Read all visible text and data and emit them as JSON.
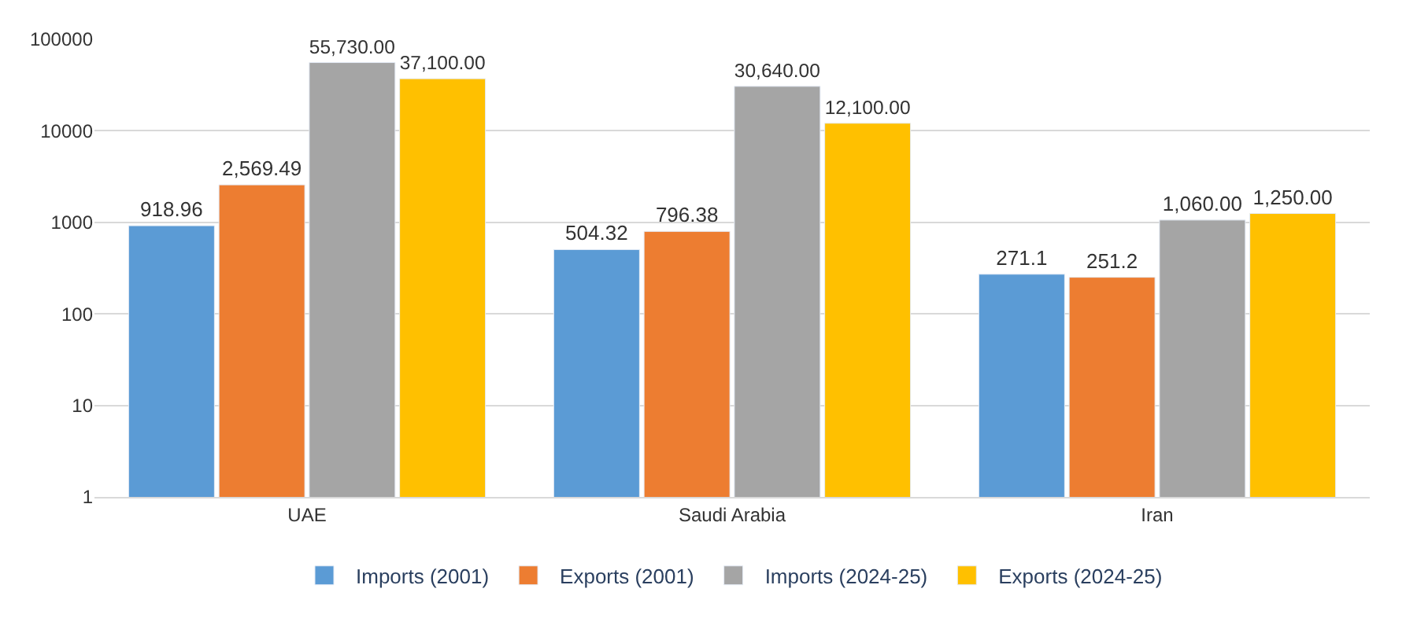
{
  "chart_data": {
    "type": "bar",
    "categories": [
      "UAE",
      "Saudi Arabia",
      "Iran"
    ],
    "series": [
      {
        "name": "Imports (2001)",
        "color": "#5b9bd5",
        "values": [
          918.96,
          504.32,
          271.1
        ],
        "value_labels": [
          "918.96",
          "504.32",
          "271.1"
        ]
      },
      {
        "name": "Exports (2001)",
        "color": "#ed7d31",
        "values": [
          2569.49,
          796.38,
          251.2
        ],
        "value_labels": [
          "2,569.49",
          "796.38",
          "251.2"
        ]
      },
      {
        "name": "Imports (2024-25)",
        "color": "#a5a5a5",
        "values": [
          55730,
          30640,
          1060
        ],
        "value_labels": [
          "55,730.00",
          "30,640.00",
          "1,060.00"
        ]
      },
      {
        "name": "Exports (2024-25)",
        "color": "#ffc000",
        "values": [
          37100,
          12100,
          1250
        ],
        "value_labels": [
          "37,100.00",
          "12,100.00",
          "1,250.00"
        ]
      }
    ],
    "log": "y",
    "ylim": [
      1,
      100000
    ],
    "yticks": [
      1,
      10,
      100,
      1000,
      10000,
      100000
    ],
    "grid": "y",
    "legend": "bottom"
  }
}
